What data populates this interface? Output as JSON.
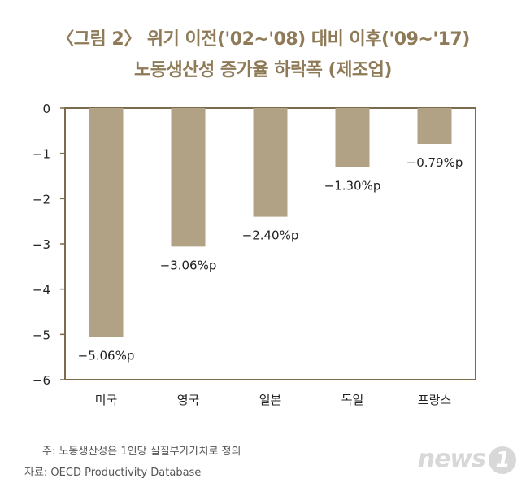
{
  "chart_data": {
    "type": "bar",
    "title": "〈그림 2〉 위기 이전('02~'08) 대비 이후('09~'17)",
    "subtitle": "노동생산성 증가율 하락폭 (제조업)",
    "categories": [
      "미국",
      "영국",
      "일본",
      "독일",
      "프랑스"
    ],
    "values": [
      -5.06,
      -3.06,
      -2.4,
      -1.3,
      -0.79
    ],
    "data_labels": [
      "−5.06%p",
      "−3.06%p",
      "−2.40%p",
      "−1.30%p",
      "−0.79%p"
    ],
    "yticks": [
      0,
      -1,
      -2,
      -3,
      -4,
      -5,
      -6
    ],
    "ytick_labels": [
      "0",
      "−1",
      "−2",
      "−3",
      "−4",
      "−5",
      "−6"
    ],
    "ylim": [
      -6,
      0
    ],
    "grid": false,
    "colors": {
      "bar": "#b1a185",
      "frame": "#7c6a4c",
      "title": "#8e7a57"
    }
  },
  "notes": {
    "definition": "주: 노동생산성은 1인당 실질부가가치로 정의",
    "source": "자료: OECD Productivity Database"
  },
  "watermark": {
    "text": "news",
    "number": "1"
  }
}
